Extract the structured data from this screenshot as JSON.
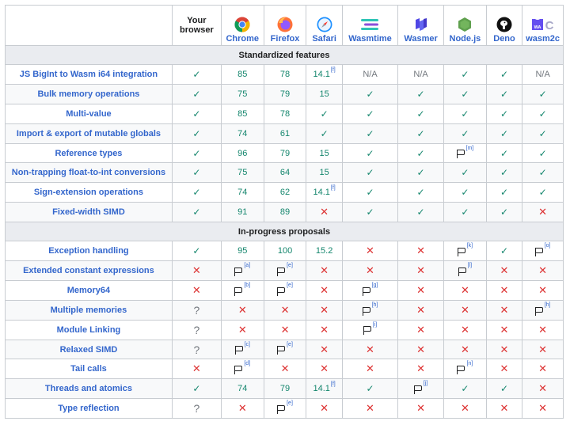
{
  "header": {
    "your_browser": "Your browser",
    "browsers": [
      {
        "name": "Chrome",
        "icon": "chrome-logo-icon"
      },
      {
        "name": "Firefox",
        "icon": "firefox-logo-icon"
      },
      {
        "name": "Safari",
        "icon": "safari-logo-icon"
      },
      {
        "name": "Wasmtime",
        "icon": "wasmtime-logo-icon"
      },
      {
        "name": "Wasmer",
        "icon": "wasmer-logo-icon"
      },
      {
        "name": "Node.js",
        "icon": "nodejs-logo-icon"
      },
      {
        "name": "Deno",
        "icon": "deno-logo-icon"
      },
      {
        "name": "wasm2c",
        "icon": "wasm2c-logo-icon"
      }
    ]
  },
  "sections": {
    "standardized": "Standardized features",
    "in_progress": "In-progress proposals"
  },
  "standardized_rows": [
    {
      "feature": "JS BigInt to Wasm i64 integration",
      "cells": [
        "yes",
        "85",
        "78",
        "14.1|f",
        "N/A",
        "N/A",
        "yes",
        "yes",
        "N/A"
      ]
    },
    {
      "feature": "Bulk memory operations",
      "cells": [
        "yes",
        "75",
        "79",
        "15",
        "yes",
        "yes",
        "yes",
        "yes",
        "yes"
      ]
    },
    {
      "feature": "Multi-value",
      "cells": [
        "yes",
        "85",
        "78",
        "yes",
        "yes",
        "yes",
        "yes",
        "yes",
        "yes"
      ]
    },
    {
      "feature": "Import & export of mutable globals",
      "cells": [
        "yes",
        "74",
        "61",
        "yes",
        "yes",
        "yes",
        "yes",
        "yes",
        "yes"
      ]
    },
    {
      "feature": "Reference types",
      "cells": [
        "yes",
        "96",
        "79",
        "15",
        "yes",
        "yes",
        "flag|m",
        "yes",
        "yes"
      ]
    },
    {
      "feature": "Non-trapping float-to-int conversions",
      "cells": [
        "yes",
        "75",
        "64",
        "15",
        "yes",
        "yes",
        "yes",
        "yes",
        "yes"
      ]
    },
    {
      "feature": "Sign-extension operations",
      "cells": [
        "yes",
        "74",
        "62",
        "14.1|f",
        "yes",
        "yes",
        "yes",
        "yes",
        "yes"
      ]
    },
    {
      "feature": "Fixed-width SIMD",
      "cells": [
        "yes",
        "91",
        "89",
        "no",
        "yes",
        "yes",
        "yes",
        "yes",
        "no"
      ]
    }
  ],
  "progress_rows": [
    {
      "feature": "Exception handling",
      "cells": [
        "yes",
        "95",
        "100",
        "15.2",
        "no",
        "no",
        "flag|k",
        "yes",
        "flag|o"
      ]
    },
    {
      "feature": "Extended constant expressions",
      "cells": [
        "no",
        "flag|a",
        "flag|e",
        "no",
        "no",
        "no",
        "flag|l",
        "no",
        "no"
      ]
    },
    {
      "feature": "Memory64",
      "cells": [
        "no",
        "flag|b",
        "flag|e",
        "no",
        "flag|g",
        "no",
        "no",
        "no",
        "no"
      ]
    },
    {
      "feature": "Multiple memories",
      "cells": [
        "unk",
        "no",
        "no",
        "no",
        "flag|h",
        "no",
        "no",
        "no",
        "flag|h"
      ]
    },
    {
      "feature": "Module Linking",
      "cells": [
        "unk",
        "no",
        "no",
        "no",
        "flag|i",
        "no",
        "no",
        "no",
        "no"
      ]
    },
    {
      "feature": "Relaxed SIMD",
      "cells": [
        "unk",
        "flag|c",
        "flag|e",
        "no",
        "no",
        "no",
        "no",
        "no",
        "no"
      ]
    },
    {
      "feature": "Tail calls",
      "cells": [
        "no",
        "flag|d",
        "no",
        "no",
        "no",
        "no",
        "flag|n",
        "no",
        "no"
      ]
    },
    {
      "feature": "Threads and atomics",
      "cells": [
        "yes",
        "74",
        "79",
        "14.1|f",
        "yes",
        "flag|j",
        "yes",
        "yes",
        "no"
      ]
    },
    {
      "feature": "Type reflection",
      "cells": [
        "unk",
        "no",
        "flag|e",
        "no",
        "no",
        "no",
        "no",
        "no",
        "no"
      ]
    }
  ],
  "symbols": {
    "yes": "✓",
    "no": "✕",
    "unk": "?",
    "na": "N/A"
  },
  "colors": {
    "link": "#3366cc",
    "yes": "#14866d",
    "no": "#d33",
    "section_bg": "#eaecf0"
  }
}
